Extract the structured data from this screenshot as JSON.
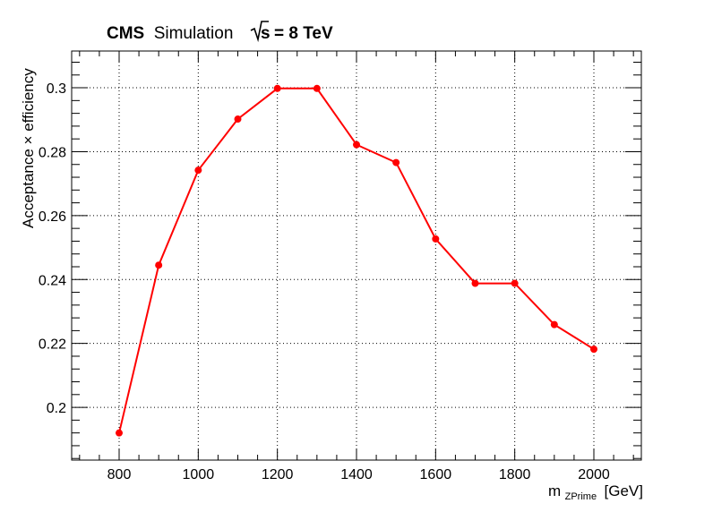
{
  "header": {
    "experiment": "CMS",
    "label": "Simulation",
    "energy_prefix": "s",
    "energy_value": "= 8 TeV"
  },
  "chart_data": {
    "type": "line",
    "title": "",
    "xlabel": "[GeV]",
    "xlabel_main": "m",
    "xlabel_sub": "ZPrime",
    "ylabel": "Acceptance × efficiency",
    "xlim": [
      680,
      2120
    ],
    "ylim": [
      0.1835,
      0.3115
    ],
    "grid": true,
    "x_ticks": [
      800,
      1000,
      1200,
      1400,
      1600,
      1800,
      2000
    ],
    "y_ticks": [
      0.2,
      0.22,
      0.24,
      0.26,
      0.28,
      0.3
    ],
    "y_tick_labels": [
      "0.2",
      "0.22",
      "0.24",
      "0.26",
      "0.28",
      "0.3"
    ],
    "series": [
      {
        "color": "#ff0000",
        "x": [
          800,
          900,
          1000,
          1100,
          1200,
          1300,
          1400,
          1500,
          1600,
          1700,
          1800,
          1900,
          2000
        ],
        "y": [
          0.192,
          0.2445,
          0.2742,
          0.2902,
          0.2998,
          0.2998,
          0.2822,
          0.2766,
          0.2527,
          0.2388,
          0.2388,
          0.2259,
          0.2182
        ]
      }
    ]
  }
}
